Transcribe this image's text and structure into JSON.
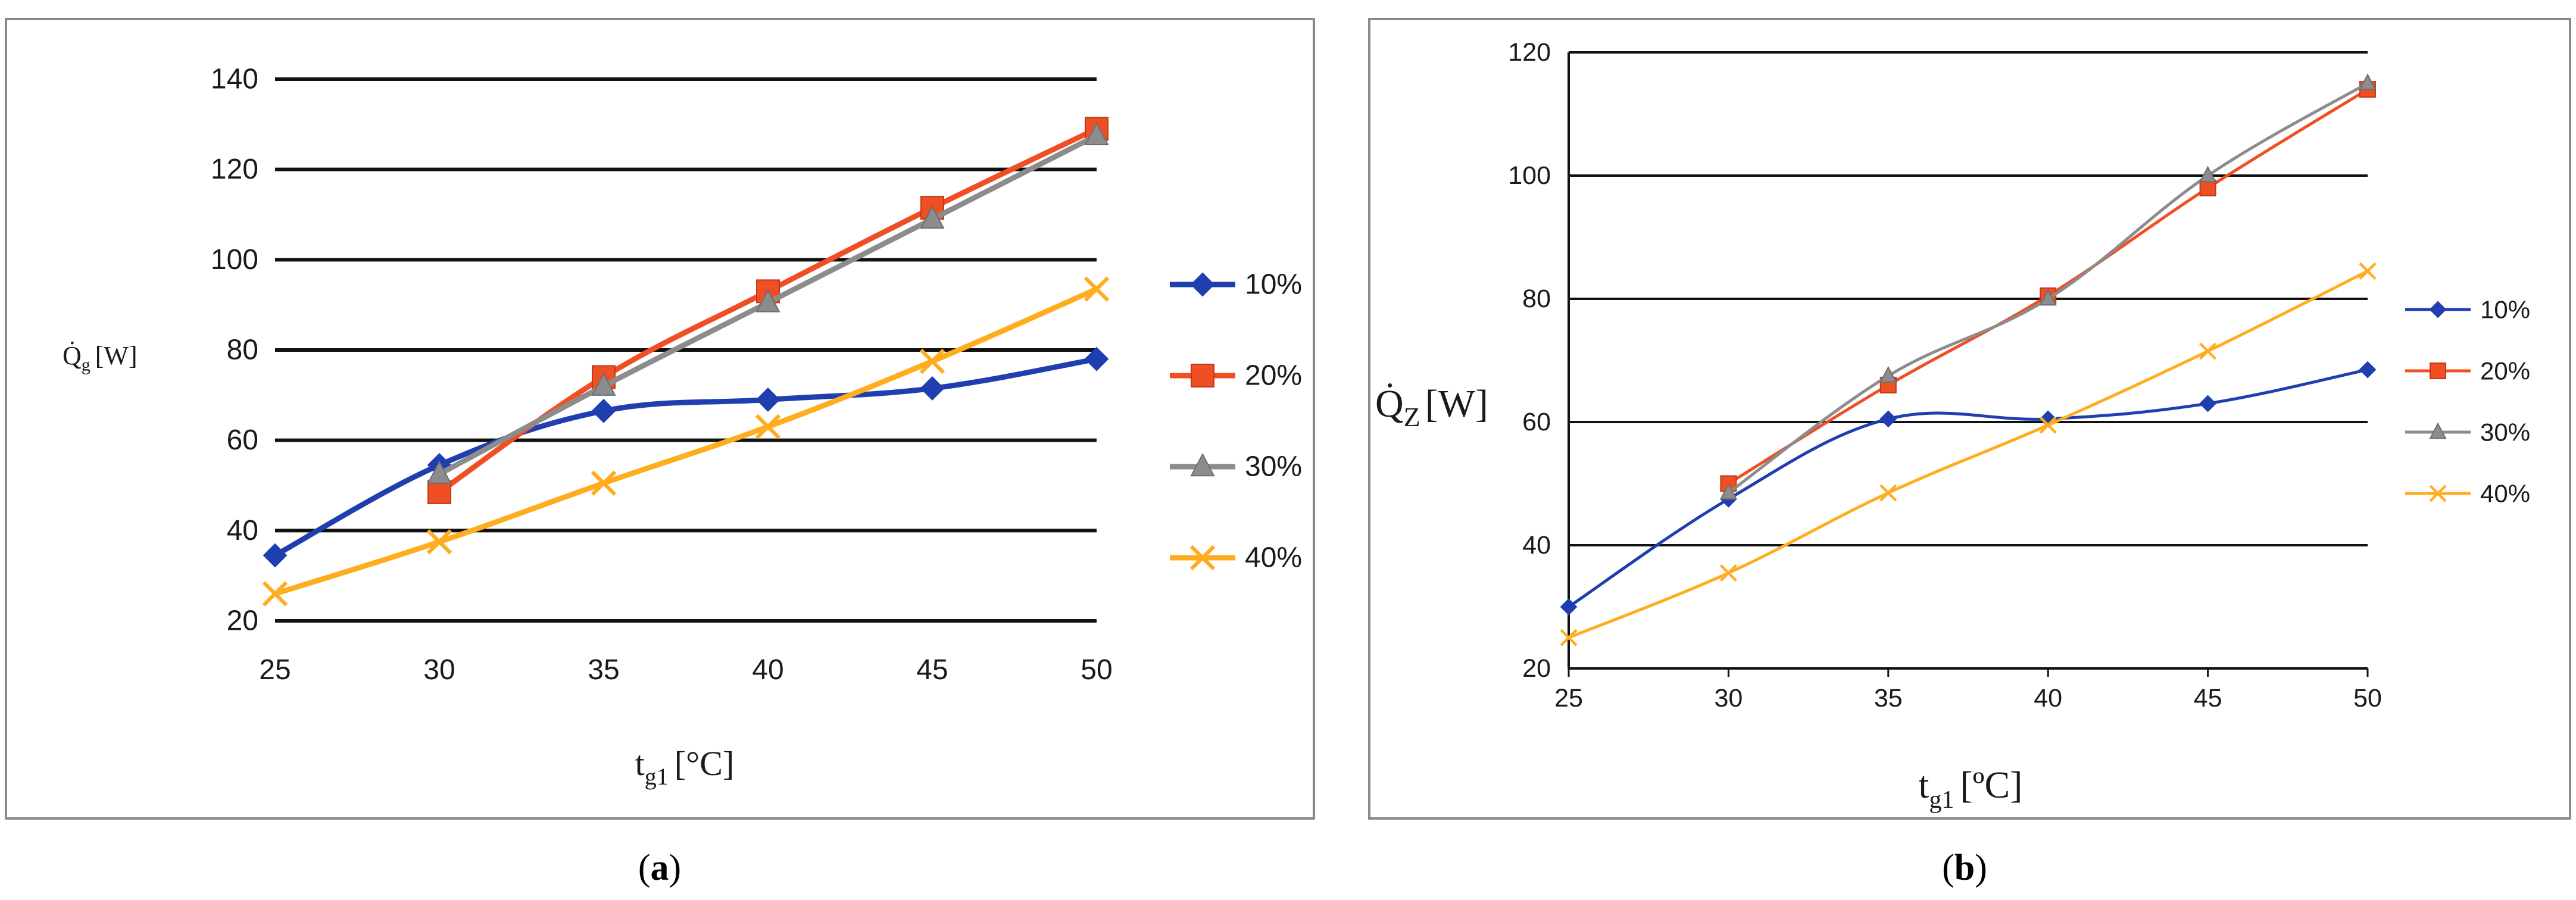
{
  "chart_data": [
    {
      "type": "line",
      "panel": "a",
      "caption_open": "(",
      "caption_letter": "a",
      "caption_close": ")",
      "ylabel_main": "Q̇",
      "ylabel_sub": "g",
      "ylabel_unit": "[W]",
      "xlabel_main": "t",
      "xlabel_sub": "g1",
      "xlabel_unit": "[°C]",
      "x": [
        25,
        30,
        35,
        40,
        45,
        50
      ],
      "ylim": [
        20,
        140
      ],
      "yticks": [
        20,
        40,
        60,
        80,
        100,
        120,
        140
      ],
      "grid": true,
      "series": [
        {
          "name": "10%",
          "color": "#1f3fb0",
          "marker": "diamond",
          "values": [
            34.5,
            54.5,
            66.5,
            69,
            71.5,
            78
          ]
        },
        {
          "name": "20%",
          "color": "#f04e23",
          "marker": "square",
          "values": [
            null,
            48.5,
            74,
            93,
            111.5,
            129
          ]
        },
        {
          "name": "30%",
          "color": "#8c8c8c",
          "marker": "triangle",
          "values": [
            null,
            52.5,
            72,
            90.5,
            109,
            127.5
          ]
        },
        {
          "name": "40%",
          "color": "#ffad1f",
          "marker": "x",
          "values": [
            26,
            37.5,
            50.5,
            63,
            77.5,
            93.5
          ]
        }
      ]
    },
    {
      "type": "line",
      "panel": "b",
      "caption_open": "(",
      "caption_letter": "b",
      "caption_close": ")",
      "ylabel_main": "Q̇",
      "ylabel_sub": "Z",
      "ylabel_unit": "[W]",
      "xlabel_main": "t",
      "xlabel_sub": "g1",
      "xlabel_unit": "[ºC]",
      "x": [
        25,
        30,
        35,
        40,
        45,
        50
      ],
      "ylim": [
        20,
        120
      ],
      "yticks": [
        20,
        40,
        60,
        80,
        100,
        120
      ],
      "grid": true,
      "series": [
        {
          "name": "10%",
          "color": "#1f3fb0",
          "marker": "diamond",
          "values": [
            30,
            47.5,
            60.5,
            60.5,
            63,
            68.5
          ]
        },
        {
          "name": "20%",
          "color": "#f04e23",
          "marker": "square",
          "values": [
            null,
            50,
            66,
            80.5,
            98,
            114
          ]
        },
        {
          "name": "30%",
          "color": "#8c8c8c",
          "marker": "triangle",
          "values": [
            null,
            48.5,
            67.5,
            80,
            100,
            115
          ]
        },
        {
          "name": "40%",
          "color": "#ffad1f",
          "marker": "x",
          "values": [
            25,
            35.5,
            48.5,
            59.5,
            71.5,
            84.5
          ]
        }
      ]
    }
  ]
}
